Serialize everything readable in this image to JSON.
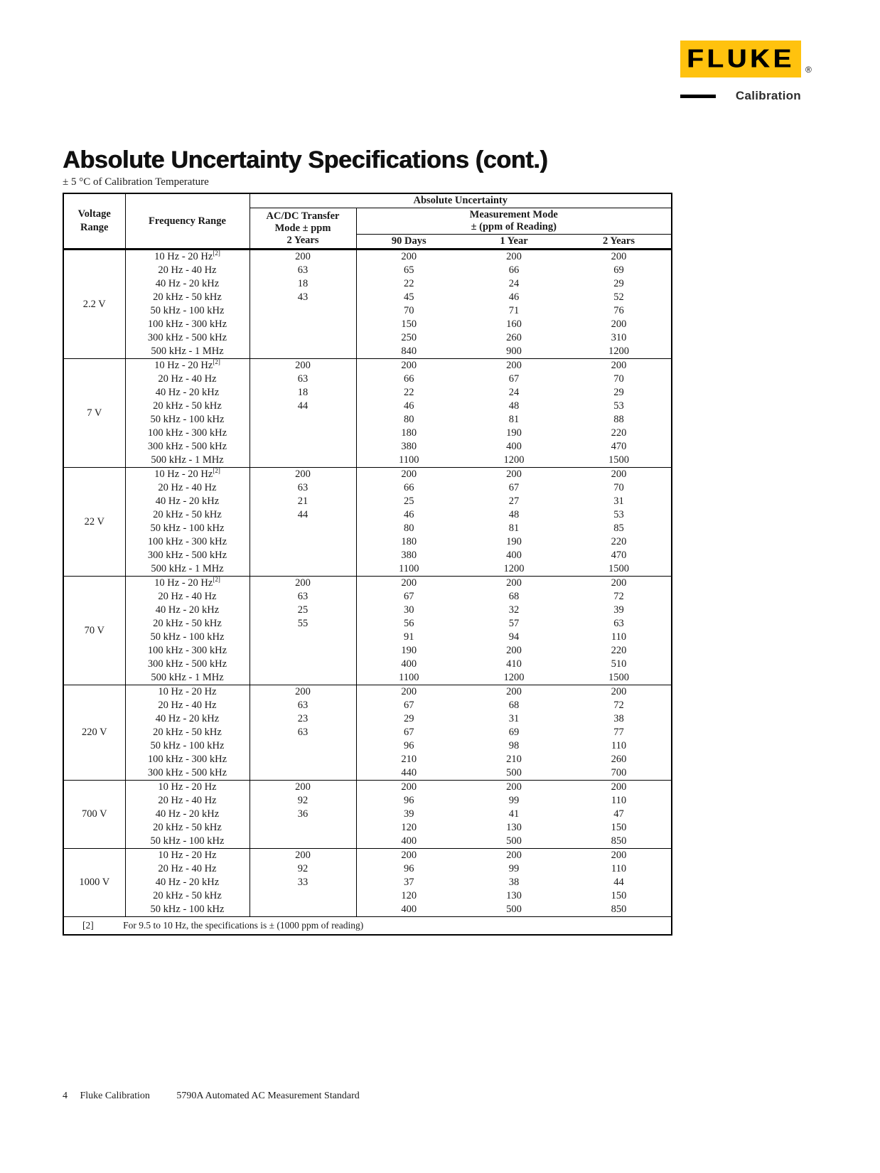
{
  "brand": {
    "logo_text": "FLUKE",
    "registered_mark": "®",
    "tagline": "Calibration",
    "brand_yellow": "#FFC20E"
  },
  "document": {
    "title": "Absolute Uncertainty Specifications (cont.)",
    "subtitle": "± 5 °C of Calibration Temperature"
  },
  "table": {
    "headers": {
      "absolute_uncertainty": "Absolute Uncertainty",
      "voltage_range": "Voltage Range",
      "frequency_range": "Frequency Range",
      "acdc_transfer_line1": "AC/DC Transfer",
      "acdc_transfer_line2": "Mode ± ppm",
      "acdc_transfer_line3": "2 Years",
      "measurement_mode_line1": "Measurement Mode",
      "measurement_mode_line2": "± (ppm of Reading)",
      "period_90_days": "90 Days",
      "period_1_year": "1 Year",
      "period_2_years": "2 Years"
    },
    "row_fields": [
      "frequency_range",
      "footnote_ref",
      "acdc_transfer_2_years",
      "90_days",
      "1_year",
      "2_years"
    ],
    "groups": [
      {
        "voltage": "2.2 V",
        "rows": [
          [
            "10 Hz - 20 Hz",
            "[2]",
            "200",
            "200",
            "200",
            "200"
          ],
          [
            "20 Hz - 40 Hz",
            "",
            "63",
            "65",
            "66",
            "69"
          ],
          [
            "40 Hz - 20 kHz",
            "",
            "18",
            "22",
            "24",
            "29"
          ],
          [
            "20 kHz - 50 kHz",
            "",
            "43",
            "45",
            "46",
            "52"
          ],
          [
            "50 kHz - 100 kHz",
            "",
            "",
            "70",
            "71",
            "76"
          ],
          [
            "100 kHz - 300 kHz",
            "",
            "",
            "150",
            "160",
            "200"
          ],
          [
            "300 kHz - 500 kHz",
            "",
            "",
            "250",
            "260",
            "310"
          ],
          [
            "500 kHz - 1 MHz",
            "",
            "",
            "840",
            "900",
            "1200"
          ]
        ]
      },
      {
        "voltage": "7 V",
        "rows": [
          [
            "10 Hz - 20 Hz",
            "[2]",
            "200",
            "200",
            "200",
            "200"
          ],
          [
            "20 Hz - 40 Hz",
            "",
            "63",
            "66",
            "67",
            "70"
          ],
          [
            "40 Hz - 20 kHz",
            "",
            "18",
            "22",
            "24",
            "29"
          ],
          [
            "20 kHz - 50 kHz",
            "",
            "44",
            "46",
            "48",
            "53"
          ],
          [
            "50 kHz - 100 kHz",
            "",
            "",
            "80",
            "81",
            "88"
          ],
          [
            "100 kHz - 300 kHz",
            "",
            "",
            "180",
            "190",
            "220"
          ],
          [
            "300 kHz - 500 kHz",
            "",
            "",
            "380",
            "400",
            "470"
          ],
          [
            "500 kHz - 1 MHz",
            "",
            "",
            "1100",
            "1200",
            "1500"
          ]
        ]
      },
      {
        "voltage": "22 V",
        "rows": [
          [
            "10 Hz - 20 Hz",
            "[2]",
            "200",
            "200",
            "200",
            "200"
          ],
          [
            "20 Hz - 40 Hz",
            "",
            "63",
            "66",
            "67",
            "70"
          ],
          [
            "40 Hz - 20 kHz",
            "",
            "21",
            "25",
            "27",
            "31"
          ],
          [
            "20 kHz - 50 kHz",
            "",
            "44",
            "46",
            "48",
            "53"
          ],
          [
            "50 kHz - 100 kHz",
            "",
            "",
            "80",
            "81",
            "85"
          ],
          [
            "100 kHz - 300 kHz",
            "",
            "",
            "180",
            "190",
            "220"
          ],
          [
            "300 kHz - 500 kHz",
            "",
            "",
            "380",
            "400",
            "470"
          ],
          [
            "500 kHz - 1 MHz",
            "",
            "",
            "1100",
            "1200",
            "1500"
          ]
        ]
      },
      {
        "voltage": "70 V",
        "rows": [
          [
            "10 Hz - 20 Hz",
            "[2]",
            "200",
            "200",
            "200",
            "200"
          ],
          [
            "20 Hz - 40 Hz",
            "",
            "63",
            "67",
            "68",
            "72"
          ],
          [
            "40 Hz - 20 kHz",
            "",
            "25",
            "30",
            "32",
            "39"
          ],
          [
            "20 kHz - 50 kHz",
            "",
            "55",
            "56",
            "57",
            "63"
          ],
          [
            "50 kHz - 100 kHz",
            "",
            "",
            "91",
            "94",
            "110"
          ],
          [
            "100 kHz - 300 kHz",
            "",
            "",
            "190",
            "200",
            "220"
          ],
          [
            "300 kHz - 500 kHz",
            "",
            "",
            "400",
            "410",
            "510"
          ],
          [
            "500 kHz - 1 MHz",
            "",
            "",
            "1100",
            "1200",
            "1500"
          ]
        ]
      },
      {
        "voltage": "220 V",
        "rows": [
          [
            "10 Hz - 20 Hz",
            "",
            "200",
            "200",
            "200",
            "200"
          ],
          [
            "20 Hz - 40 Hz",
            "",
            "63",
            "67",
            "68",
            "72"
          ],
          [
            "40 Hz - 20 kHz",
            "",
            "23",
            "29",
            "31",
            "38"
          ],
          [
            "20 kHz - 50 kHz",
            "",
            "63",
            "67",
            "69",
            "77"
          ],
          [
            "50 kHz - 100 kHz",
            "",
            "",
            "96",
            "98",
            "110"
          ],
          [
            "100 kHz - 300 kHz",
            "",
            "",
            "210",
            "210",
            "260"
          ],
          [
            "300 kHz - 500 kHz",
            "",
            "",
            "440",
            "500",
            "700"
          ]
        ]
      },
      {
        "voltage": "700 V",
        "rows": [
          [
            "10 Hz - 20 Hz",
            "",
            "200",
            "200",
            "200",
            "200"
          ],
          [
            "20 Hz - 40 Hz",
            "",
            "92",
            "96",
            "99",
            "110"
          ],
          [
            "40 Hz - 20 kHz",
            "",
            "36",
            "39",
            "41",
            "47"
          ],
          [
            "20 kHz - 50 kHz",
            "",
            "",
            "120",
            "130",
            "150"
          ],
          [
            "50 kHz - 100 kHz",
            "",
            "",
            "400",
            "500",
            "850"
          ]
        ]
      },
      {
        "voltage": "1000 V",
        "rows": [
          [
            "10 Hz - 20 Hz",
            "",
            "200",
            "200",
            "200",
            "200"
          ],
          [
            "20 Hz - 40 Hz",
            "",
            "92",
            "96",
            "99",
            "110"
          ],
          [
            "40 Hz - 20 kHz",
            "",
            "33",
            "37",
            "38",
            "44"
          ],
          [
            "20 kHz - 50 kHz",
            "",
            "",
            "120",
            "130",
            "150"
          ],
          [
            "50 kHz - 100 kHz",
            "",
            "",
            "400",
            "500",
            "850"
          ]
        ]
      }
    ],
    "footnote": {
      "marker": "[2]",
      "text": "For 9.5 to 10 Hz, the specifications is ± (1000 ppm of reading)"
    }
  },
  "footer": {
    "page_number": "4",
    "brand": "Fluke Calibration",
    "product": "5790A Automated AC Measurement Standard"
  }
}
